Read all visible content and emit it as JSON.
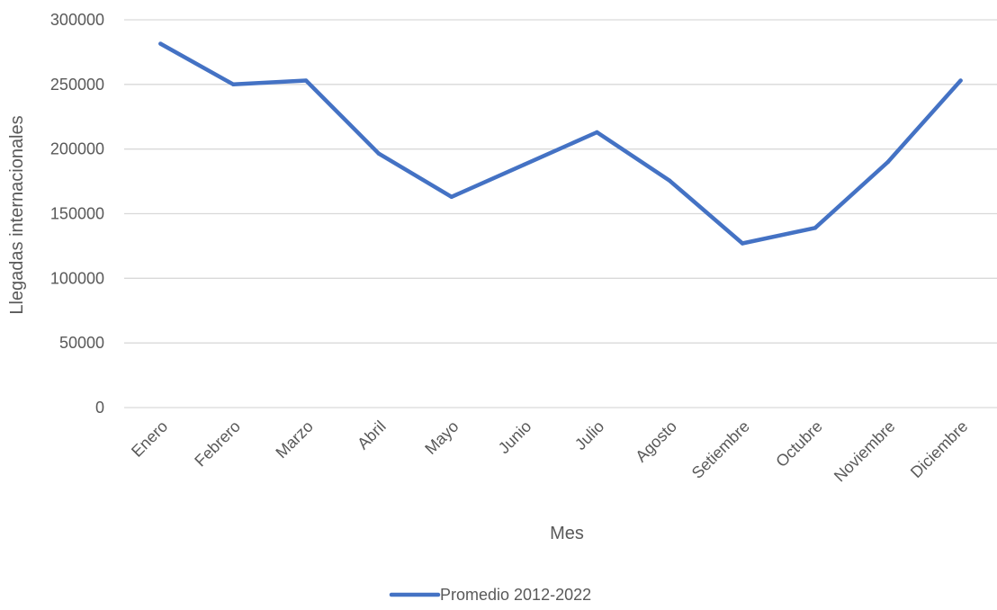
{
  "chart_data": {
    "type": "line",
    "title": "",
    "xlabel": "Mes",
    "ylabel": "Llegadas internacionales",
    "categories": [
      "Enero",
      "Febrero",
      "Marzo",
      "Abril",
      "Mayo",
      "Junio",
      "Julio",
      "Agosto",
      "Setiembre",
      "Octubre",
      "Noviembre",
      "Diciembre"
    ],
    "series": [
      {
        "name": "Promedio 2012-2022",
        "color": "#4472C4",
        "values": [
          281500,
          250000,
          253000,
          196500,
          163000,
          188000,
          213000,
          175500,
          127000,
          139000,
          190000,
          253000
        ]
      }
    ],
    "ylim": [
      0,
      300000
    ],
    "yticks": [
      "0",
      "50000",
      "100000",
      "150000",
      "200000",
      "250000",
      "300000"
    ],
    "grid": true,
    "legend_position": "bottom",
    "gridline_color": "#D9D9D9"
  }
}
